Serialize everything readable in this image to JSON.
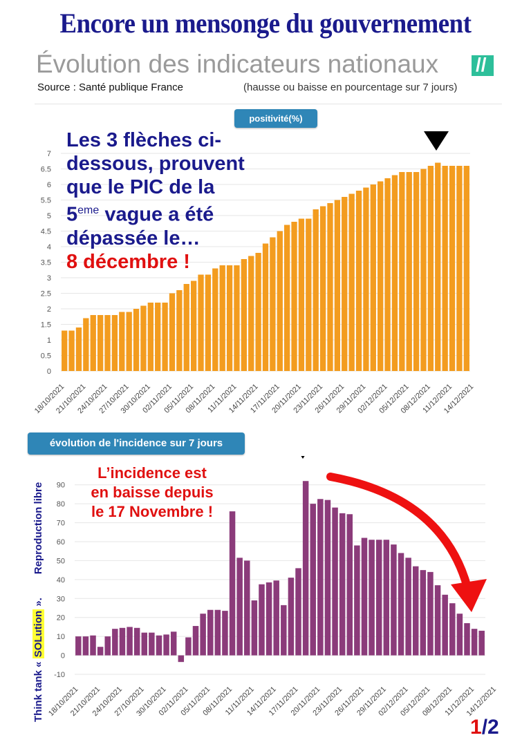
{
  "header": {
    "headline": "Encore un mensonge du gouvernement",
    "subtitle": "Évolution des indicateurs nationaux",
    "logo_text": "//",
    "source": "Source :  Santé publique France",
    "note": "(hausse ou baisse en pourcentage sur 7 jours)"
  },
  "annotations": {
    "top_lines": [
      "Les 3 flèches ci-",
      "dessous, prouvent",
      "que le PIC de la"
    ],
    "top_fifth": "5",
    "top_sup": "eme",
    "top_wave": " vague a été",
    "top_passed": "dépassée le…",
    "top_date": "8 décembre !",
    "bottom_lines": [
      "L’incidence est",
      "en baisse depuis",
      "le 17 Novembre !"
    ],
    "side_part1": "Think tank « ",
    "side_highlight": "SOLution",
    "side_part2": " ».",
    "side_part3": "Reproduction libre",
    "page_current": "1",
    "page_total": "/2"
  },
  "colors": {
    "positivity_bar": "#f39c1f",
    "incidence_bar": "#8b3b7a",
    "tag_bg": "#2f86b7",
    "arrow_red": "#ee1111",
    "headline": "#1a1a8c"
  },
  "chart_data": [
    {
      "type": "bar",
      "tag": "positivité(%)",
      "date_labels": [
        "18/10/2021",
        "21/10/2021",
        "24/10/2021",
        "27/10/2021",
        "30/10/2021",
        "02/11/2021",
        "05/11/2021",
        "08/11/2021",
        "11/11/2021",
        "14/11/2021",
        "17/11/2021",
        "20/11/2021",
        "23/11/2021",
        "26/11/2021",
        "29/11/2021",
        "02/12/2021",
        "05/12/2021",
        "08/12/2021",
        "11/12/2021",
        "14/12/2021"
      ],
      "values": [
        1.3,
        1.3,
        1.4,
        1.7,
        1.8,
        1.8,
        1.8,
        1.8,
        1.9,
        1.9,
        2.0,
        2.1,
        2.2,
        2.2,
        2.2,
        2.5,
        2.6,
        2.8,
        2.9,
        3.1,
        3.1,
        3.3,
        3.4,
        3.4,
        3.4,
        3.6,
        3.7,
        3.8,
        4.1,
        4.3,
        4.5,
        4.7,
        4.8,
        4.9,
        4.9,
        5.2,
        5.3,
        5.4,
        5.5,
        5.6,
        5.7,
        5.8,
        5.9,
        6.0,
        6.1,
        6.2,
        6.3,
        6.4,
        6.4,
        6.4,
        6.5,
        6.6,
        6.7,
        6.6,
        6.6,
        6.6,
        6.6
      ],
      "yticks": [
        "0",
        "0.5",
        "1",
        "1.5",
        "2",
        "2.5",
        "3",
        "3.5",
        "4",
        "4.5",
        "5",
        "5.5",
        "6",
        "6.5",
        "7"
      ],
      "ylim": [
        0,
        7
      ],
      "grid": true
    },
    {
      "type": "bar",
      "tag": "évolution de l'incidence sur 7 jours",
      "date_labels": [
        "18/10/2021",
        "21/10/2021",
        "24/10/2021",
        "27/10/2021",
        "30/10/2021",
        "02/11/2021",
        "05/11/2021",
        "08/11/2021",
        "11/11/2021",
        "14/11/2021",
        "17/11/2021",
        "20/11/2021",
        "23/11/2021",
        "26/11/2021",
        "29/11/2021",
        "02/12/2021",
        "05/12/2021",
        "08/12/2021",
        "11/12/2021",
        "14/12/2021"
      ],
      "values": [
        10,
        10,
        10.5,
        4.5,
        10,
        14,
        14.5,
        15,
        14.5,
        12,
        12,
        10.5,
        11,
        12.5,
        -3.5,
        9.5,
        15.5,
        22,
        24,
        24,
        23.5,
        76,
        51.5,
        50,
        29,
        37.5,
        38.5,
        39.5,
        26.5,
        41,
        46,
        92,
        80,
        82.5,
        82,
        78,
        75,
        74.5,
        58,
        62,
        61,
        61,
        61,
        58.5,
        54,
        51.5,
        47,
        45,
        44,
        37,
        32,
        27.5,
        22,
        17,
        14,
        13
      ],
      "yticks": [
        "-10",
        "0",
        "10",
        "20",
        "30",
        "40",
        "50",
        "60",
        "70",
        "80",
        "90"
      ],
      "ylim": [
        -10,
        95
      ],
      "grid": true
    }
  ]
}
